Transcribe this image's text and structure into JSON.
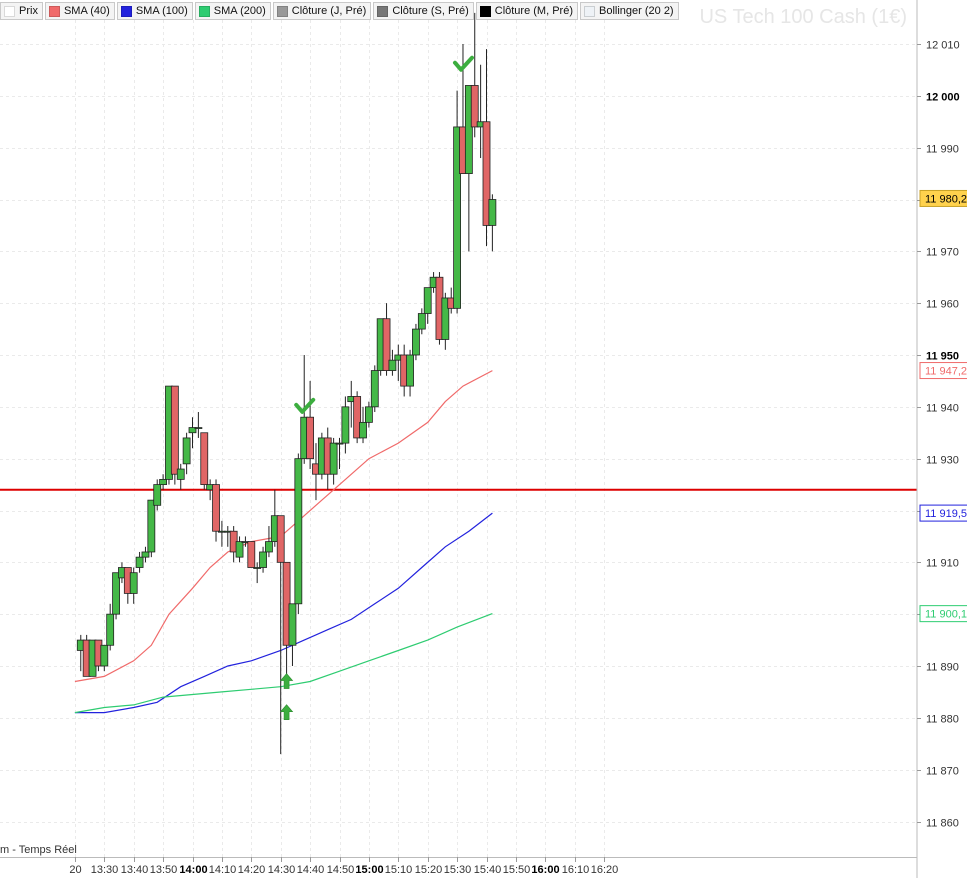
{
  "legend": [
    {
      "label": "Prix",
      "color": "#ffffff"
    },
    {
      "label": "SMA (40)",
      "color": "#f06a6a"
    },
    {
      "label": "SMA (100)",
      "color": "#2222dd"
    },
    {
      "label": "SMA (200)",
      "color": "#2ecc71"
    },
    {
      "label": "Clôture (J, Pré)",
      "color": "#999999"
    },
    {
      "label": "Clôture (S, Pré)",
      "color": "#777777"
    },
    {
      "label": "Clôture (M, Pré)",
      "color": "#000000"
    },
    {
      "label": "Bollinger (20 2)",
      "color": "#eef2f6"
    }
  ],
  "watermark": "US Tech 100 Cash (1€)",
  "footnote": "m - Temps Réel",
  "colors": {
    "bull": "#44b847",
    "bear": "#e06666",
    "sma40": "#f06a6a",
    "sma100": "#2222dd",
    "sma200": "#2ecc71",
    "hline": "#dd0000",
    "grid": "#eaeaea",
    "last_tag": "#ffd24d"
  },
  "chart_data": {
    "type": "candlestick",
    "interval_minutes": 2,
    "yticks": [
      {
        "v": 11860,
        "label": "11 860"
      },
      {
        "v": 11870,
        "label": "11 870"
      },
      {
        "v": 11880,
        "label": "11 880"
      },
      {
        "v": 11890,
        "label": "11 890"
      },
      {
        "v": 11900,
        "label": "11 900"
      },
      {
        "v": 11910,
        "label": "11 910"
      },
      {
        "v": 11920,
        "label": "11 920"
      },
      {
        "v": 11930,
        "label": "11 930"
      },
      {
        "v": 11940,
        "label": "11 940"
      },
      {
        "v": 11950,
        "label": "11 950",
        "bold": true
      },
      {
        "v": 11960,
        "label": "11 960"
      },
      {
        "v": 11970,
        "label": "11 970"
      },
      {
        "v": 11980,
        "label": "11 980"
      },
      {
        "v": 11990,
        "label": "11 990"
      },
      {
        "v": 12000,
        "label": "12 000",
        "bold": true
      },
      {
        "v": 12010,
        "label": "12 010"
      }
    ],
    "xticks": [
      {
        "t": "13:20",
        "label": "20"
      },
      {
        "t": "13:30",
        "label": "13:30"
      },
      {
        "t": "13:40",
        "label": "13:40"
      },
      {
        "t": "13:50",
        "label": "13:50"
      },
      {
        "t": "14:00",
        "label": "14:00",
        "bold": true
      },
      {
        "t": "14:10",
        "label": "14:10"
      },
      {
        "t": "14:20",
        "label": "14:20"
      },
      {
        "t": "14:30",
        "label": "14:30"
      },
      {
        "t": "14:40",
        "label": "14:40"
      },
      {
        "t": "14:50",
        "label": "14:50"
      },
      {
        "t": "15:00",
        "label": "15:00",
        "bold": true
      },
      {
        "t": "15:10",
        "label": "15:10"
      },
      {
        "t": "15:20",
        "label": "15:20"
      },
      {
        "t": "15:30",
        "label": "15:30"
      },
      {
        "t": "15:40",
        "label": "15:40"
      },
      {
        "t": "15:50",
        "label": "15:50"
      },
      {
        "t": "16:00",
        "label": "16:00",
        "bold": true
      },
      {
        "t": "16:10",
        "label": "16:10"
      },
      {
        "t": "16:20",
        "label": "16:20"
      }
    ],
    "candles": [
      {
        "t": "13:22",
        "o": 11893,
        "h": 11896,
        "l": 11889,
        "c": 11895
      },
      {
        "t": "13:24",
        "o": 11895,
        "h": 11896,
        "l": 11888,
        "c": 11888
      },
      {
        "t": "13:26",
        "o": 11888,
        "h": 11895,
        "l": 11888,
        "c": 11895
      },
      {
        "t": "13:28",
        "o": 11895,
        "h": 11895,
        "l": 11889,
        "c": 11890
      },
      {
        "t": "13:30",
        "o": 11890,
        "h": 11894,
        "l": 11889,
        "c": 11894
      },
      {
        "t": "13:32",
        "o": 11894,
        "h": 11902,
        "l": 11893,
        "c": 11900
      },
      {
        "t": "13:34",
        "o": 11900,
        "h": 11908,
        "l": 11899,
        "c": 11908
      },
      {
        "t": "13:36",
        "o": 11907,
        "h": 11910,
        "l": 11906,
        "c": 11909
      },
      {
        "t": "13:38",
        "o": 11909,
        "h": 11909,
        "l": 11902,
        "c": 11904
      },
      {
        "t": "13:40",
        "o": 11904,
        "h": 11909,
        "l": 11902,
        "c": 11908
      },
      {
        "t": "13:42",
        "o": 11909,
        "h": 11912,
        "l": 11908,
        "c": 11911
      },
      {
        "t": "13:44",
        "o": 11911,
        "h": 11913,
        "l": 11910,
        "c": 11912
      },
      {
        "t": "13:46",
        "o": 11912,
        "h": 11922,
        "l": 11911,
        "c": 11922
      },
      {
        "t": "13:48",
        "o": 11921,
        "h": 11926,
        "l": 11920,
        "c": 11925
      },
      {
        "t": "13:50",
        "o": 11925,
        "h": 11927,
        "l": 11924,
        "c": 11926
      },
      {
        "t": "13:52",
        "o": 11926,
        "h": 11944,
        "l": 11925,
        "c": 11944
      },
      {
        "t": "13:54",
        "o": 11944,
        "h": 11944,
        "l": 11925,
        "c": 11927
      },
      {
        "t": "13:56",
        "o": 11926,
        "h": 11929,
        "l": 11924,
        "c": 11928
      },
      {
        "t": "13:58",
        "o": 11929,
        "h": 11935,
        "l": 11927,
        "c": 11934
      },
      {
        "t": "14:00",
        "o": 11935,
        "h": 11938,
        "l": 11932,
        "c": 11936
      },
      {
        "t": "14:02",
        "o": 11936,
        "h": 11939,
        "l": 11934,
        "c": 11936
      },
      {
        "t": "14:04",
        "o": 11935,
        "h": 11935,
        "l": 11924,
        "c": 11925
      },
      {
        "t": "14:06",
        "o": 11924,
        "h": 11926,
        "l": 11922,
        "c": 11925
      },
      {
        "t": "14:08",
        "o": 11925,
        "h": 11926,
        "l": 11914,
        "c": 11916
      },
      {
        "t": "14:10",
        "o": 11916,
        "h": 11918,
        "l": 11913,
        "c": 11916
      },
      {
        "t": "14:12",
        "o": 11916,
        "h": 11917,
        "l": 11913,
        "c": 11916
      },
      {
        "t": "14:14",
        "o": 11916,
        "h": 11917,
        "l": 11910,
        "c": 11912
      },
      {
        "t": "14:16",
        "o": 11911,
        "h": 11915,
        "l": 11910,
        "c": 11914
      },
      {
        "t": "14:18",
        "o": 11914,
        "h": 11915,
        "l": 11913,
        "c": 11914
      },
      {
        "t": "14:20",
        "o": 11914,
        "h": 11914,
        "l": 11909,
        "c": 11909
      },
      {
        "t": "14:22",
        "o": 11909,
        "h": 11910,
        "l": 11906,
        "c": 11909
      },
      {
        "t": "14:24",
        "o": 11909,
        "h": 11913,
        "l": 11908,
        "c": 11912
      },
      {
        "t": "14:26",
        "o": 11912,
        "h": 11917,
        "l": 11911,
        "c": 11914
      },
      {
        "t": "14:28",
        "o": 11914,
        "h": 11924,
        "l": 11913,
        "c": 11919
      },
      {
        "t": "14:30",
        "o": 11919,
        "h": 11919,
        "l": 11873,
        "c": 11910
      },
      {
        "t": "14:32",
        "o": 11910,
        "h": 11910,
        "l": 11886,
        "c": 11894
      },
      {
        "t": "14:34",
        "o": 11894,
        "h": 11902,
        "l": 11890,
        "c": 11902
      },
      {
        "t": "14:36",
        "o": 11902,
        "h": 11931,
        "l": 11900,
        "c": 11930
      },
      {
        "t": "14:38",
        "o": 11930,
        "h": 11950,
        "l": 11929,
        "c": 11938
      },
      {
        "t": "14:40",
        "o": 11938,
        "h": 11945,
        "l": 11928,
        "c": 11930
      },
      {
        "t": "14:42",
        "o": 11929,
        "h": 11933,
        "l": 11922,
        "c": 11927
      },
      {
        "t": "14:44",
        "o": 11927,
        "h": 11935,
        "l": 11926,
        "c": 11934
      },
      {
        "t": "14:46",
        "o": 11934,
        "h": 11936,
        "l": 11924,
        "c": 11927
      },
      {
        "t": "14:48",
        "o": 11927,
        "h": 11934,
        "l": 11925,
        "c": 11933
      },
      {
        "t": "14:50",
        "o": 11933,
        "h": 11934,
        "l": 11928,
        "c": 11933
      },
      {
        "t": "14:52",
        "o": 11933,
        "h": 11942,
        "l": 11931,
        "c": 11940
      },
      {
        "t": "14:54",
        "o": 11941,
        "h": 11945,
        "l": 11936,
        "c": 11942
      },
      {
        "t": "14:56",
        "o": 11942,
        "h": 11943,
        "l": 11933,
        "c": 11934
      },
      {
        "t": "14:58",
        "o": 11934,
        "h": 11940,
        "l": 11933,
        "c": 11937
      },
      {
        "t": "15:00",
        "o": 11937,
        "h": 11941,
        "l": 11936,
        "c": 11940
      },
      {
        "t": "15:02",
        "o": 11940,
        "h": 11948,
        "l": 11939,
        "c": 11947
      },
      {
        "t": "15:04",
        "o": 11947,
        "h": 11957,
        "l": 11946,
        "c": 11957
      },
      {
        "t": "15:06",
        "o": 11957,
        "h": 11960,
        "l": 11946,
        "c": 11947
      },
      {
        "t": "15:08",
        "o": 11947,
        "h": 11951,
        "l": 11946,
        "c": 11949
      },
      {
        "t": "15:10",
        "o": 11949,
        "h": 11952,
        "l": 11945,
        "c": 11950
      },
      {
        "t": "15:12",
        "o": 11950,
        "h": 11952,
        "l": 11942,
        "c": 11944
      },
      {
        "t": "15:14",
        "o": 11944,
        "h": 11951,
        "l": 11942,
        "c": 11950
      },
      {
        "t": "15:16",
        "o": 11950,
        "h": 11956,
        "l": 11949,
        "c": 11955
      },
      {
        "t": "15:18",
        "o": 11955,
        "h": 11959,
        "l": 11954,
        "c": 11958
      },
      {
        "t": "15:20",
        "o": 11958,
        "h": 11963,
        "l": 11956,
        "c": 11963
      },
      {
        "t": "15:22",
        "o": 11963,
        "h": 11966,
        "l": 11962,
        "c": 11965
      },
      {
        "t": "15:24",
        "o": 11965,
        "h": 11966,
        "l": 11952,
        "c": 11953
      },
      {
        "t": "15:26",
        "o": 11953,
        "h": 11962,
        "l": 11951,
        "c": 11961
      },
      {
        "t": "15:28",
        "o": 11961,
        "h": 11963,
        "l": 11958,
        "c": 11959
      },
      {
        "t": "15:30",
        "o": 11959,
        "h": 12001,
        "l": 11958,
        "c": 11994
      },
      {
        "t": "15:32",
        "o": 11994,
        "h": 12010,
        "l": 11985,
        "c": 11985
      },
      {
        "t": "15:34",
        "o": 11985,
        "h": 12002,
        "l": 11970,
        "c": 12002
      },
      {
        "t": "15:36",
        "o": 12002,
        "h": 12016,
        "l": 11992,
        "c": 11994
      },
      {
        "t": "15:38",
        "o": 11994,
        "h": 12006,
        "l": 11988,
        "c": 11995
      },
      {
        "t": "15:40",
        "o": 11995,
        "h": 12009,
        "l": 11971,
        "c": 11975
      },
      {
        "t": "15:42",
        "o": 11975,
        "h": 11981,
        "l": 11970,
        "c": 11980
      }
    ],
    "series": [
      {
        "name": "SMA (40)",
        "color_key": "sma40",
        "last_label": "11 947,2",
        "points": [
          [
            "13:20",
            11887
          ],
          [
            "13:30",
            11888
          ],
          [
            "13:40",
            11891
          ],
          [
            "13:46",
            11894
          ],
          [
            "13:52",
            11900
          ],
          [
            "14:00",
            11905
          ],
          [
            "14:06",
            11909
          ],
          [
            "14:12",
            11912
          ],
          [
            "14:20",
            11914
          ],
          [
            "14:30",
            11915
          ],
          [
            "14:36",
            11918
          ],
          [
            "14:44",
            11922
          ],
          [
            "14:52",
            11926
          ],
          [
            "15:00",
            11930
          ],
          [
            "15:10",
            11933
          ],
          [
            "15:20",
            11937
          ],
          [
            "15:26",
            11941
          ],
          [
            "15:32",
            11944
          ],
          [
            "15:42",
            11947
          ]
        ]
      },
      {
        "name": "SMA (100)",
        "color_key": "sma100",
        "last_label": "11 919,5",
        "points": [
          [
            "13:20",
            11881
          ],
          [
            "13:30",
            11881
          ],
          [
            "13:40",
            11882
          ],
          [
            "13:48",
            11883
          ],
          [
            "13:56",
            11886
          ],
          [
            "14:04",
            11888
          ],
          [
            "14:12",
            11890
          ],
          [
            "14:20",
            11891
          ],
          [
            "14:30",
            11893
          ],
          [
            "14:38",
            11895
          ],
          [
            "14:46",
            11897
          ],
          [
            "14:54",
            11899
          ],
          [
            "15:02",
            11902
          ],
          [
            "15:10",
            11905
          ],
          [
            "15:18",
            11909
          ],
          [
            "15:26",
            11913
          ],
          [
            "15:34",
            11916
          ],
          [
            "15:42",
            11919.5
          ]
        ]
      },
      {
        "name": "SMA (200)",
        "color_key": "sma200",
        "last_label": "11 900,1",
        "points": [
          [
            "13:20",
            11881
          ],
          [
            "13:30",
            11882
          ],
          [
            "13:40",
            11882.5
          ],
          [
            "13:50",
            11884
          ],
          [
            "14:00",
            11884.5
          ],
          [
            "14:10",
            11885
          ],
          [
            "14:20",
            11885.5
          ],
          [
            "14:30",
            11886
          ],
          [
            "14:40",
            11887
          ],
          [
            "14:50",
            11889
          ],
          [
            "15:00",
            11891
          ],
          [
            "15:10",
            11893
          ],
          [
            "15:20",
            11895
          ],
          [
            "15:30",
            11897.5
          ],
          [
            "15:42",
            11900.1
          ]
        ]
      }
    ],
    "hlines": [
      {
        "v": 11924,
        "color_key": "hline"
      }
    ],
    "last_price": {
      "v": 11980.2,
      "label": "11 980,2"
    },
    "signals": [
      {
        "t": "14:38",
        "v": 11940,
        "kind": "check"
      },
      {
        "t": "15:32",
        "v": 12006,
        "kind": "check"
      },
      {
        "t": "14:32",
        "v": 11887,
        "kind": "arrow-up"
      },
      {
        "t": "14:32",
        "v": 11881,
        "kind": "arrow-up"
      }
    ]
  }
}
